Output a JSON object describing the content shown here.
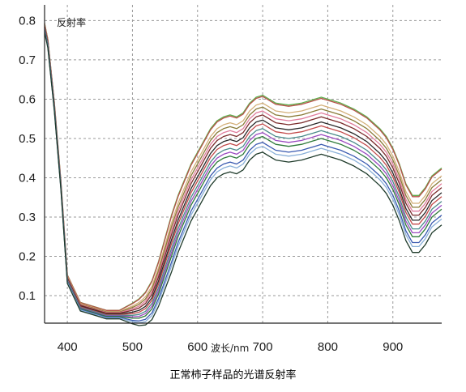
{
  "chart_data": {
    "type": "line",
    "title": "正常柿子样品的光谱反射率",
    "ylabel": "反射率",
    "xlabel": "波长/nm",
    "xlim": [
      365,
      975
    ],
    "ylim": [
      0.03,
      0.84
    ],
    "x_ticks": [
      400,
      500,
      600,
      700,
      800,
      900
    ],
    "y_ticks": [
      0.1,
      0.2,
      0.3,
      0.4,
      0.5,
      0.6,
      0.7,
      0.8
    ],
    "x_tick_labels": [
      "400",
      "500",
      "600",
      "700",
      "800",
      "900"
    ],
    "y_tick_labels": [
      "0.1",
      "0.2",
      "0.3",
      "0.4",
      "0.5",
      "0.6",
      "0.7",
      "0.8"
    ],
    "grid": true,
    "x": [
      365,
      370,
      380,
      390,
      400,
      420,
      440,
      460,
      480,
      500,
      510,
      520,
      530,
      540,
      550,
      560,
      570,
      580,
      590,
      600,
      610,
      620,
      630,
      640,
      650,
      660,
      670,
      680,
      690,
      700,
      710,
      720,
      740,
      760,
      780,
      790,
      800,
      820,
      840,
      860,
      880,
      890,
      900,
      910,
      920,
      930,
      940,
      950,
      960,
      975
    ],
    "base_curve": [
      0.78,
      0.74,
      0.58,
      0.38,
      0.14,
      0.07,
      0.06,
      0.05,
      0.05,
      0.05,
      0.052,
      0.06,
      0.08,
      0.12,
      0.17,
      0.22,
      0.27,
      0.31,
      0.35,
      0.38,
      0.41,
      0.44,
      0.46,
      0.47,
      0.475,
      0.47,
      0.48,
      0.505,
      0.52,
      0.525,
      0.515,
      0.505,
      0.5,
      0.505,
      0.515,
      0.52,
      0.515,
      0.505,
      0.49,
      0.47,
      0.44,
      0.42,
      0.39,
      0.35,
      0.3,
      0.27,
      0.27,
      0.29,
      0.32,
      0.34
    ],
    "series": [
      {
        "color": "#5fae4e",
        "offset": 0.085
      },
      {
        "color": "#b8524a",
        "offset": 0.082
      },
      {
        "color": "#d4b07a",
        "offset": 0.065
      },
      {
        "color": "#8a7a38",
        "offset": 0.055
      },
      {
        "color": "#e07c9c",
        "offset": 0.045
      },
      {
        "color": "#7a2a2a",
        "offset": 0.035
      },
      {
        "color": "#2a2a2a",
        "offset": 0.022
      },
      {
        "color": "#c24a4a",
        "offset": 0.012
      },
      {
        "color": "#4a8a8a",
        "offset": 0.0
      },
      {
        "color": "#9a4ac0",
        "offset": -0.01
      },
      {
        "color": "#2e7a3a",
        "offset": -0.02
      },
      {
        "color": "#3a5ab0",
        "offset": -0.035
      },
      {
        "color": "#8ab0d8",
        "offset": -0.045
      },
      {
        "color": "#1e3a2a",
        "offset": -0.06
      }
    ]
  },
  "caption": "正常柿子样品的光谱反射率"
}
